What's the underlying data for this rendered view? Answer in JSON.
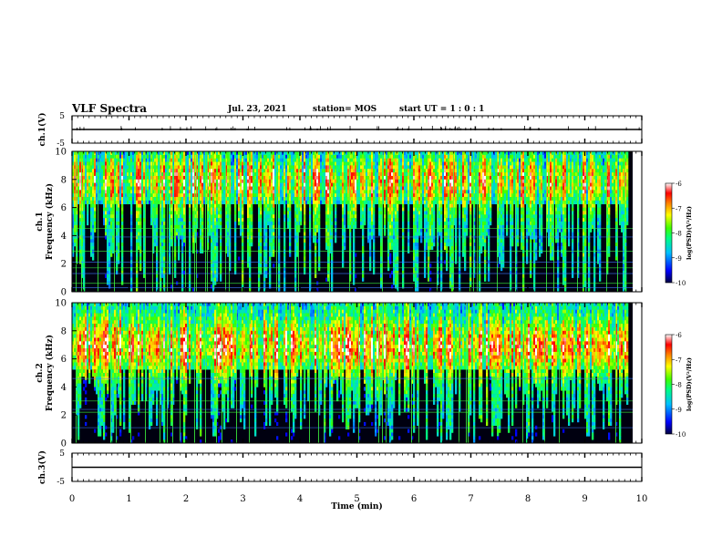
{
  "header": {
    "title": "VLF Spectra",
    "date": "Jul. 23, 2021",
    "station": "station= MOS",
    "start": "start  UT =   1 : 0  : 1"
  },
  "chart_data": [
    {
      "type": "line",
      "name": "ch1-waveform",
      "ylabel": "ch.1(V)",
      "ylim": [
        -5,
        5
      ],
      "yticks": [
        "5",
        "-5"
      ],
      "x": [
        0,
        10
      ],
      "values": [
        0,
        0
      ]
    },
    {
      "type": "heatmap",
      "name": "ch1-spectrogram",
      "ylabel": "ch.1\nFrequency (kHz)",
      "ylabel_line1": "ch.1",
      "ylabel_line2": "Frequency (kHz)",
      "ylim": [
        0,
        10
      ],
      "yticks": [
        "0",
        "2",
        "4",
        "6",
        "8",
        "10"
      ],
      "colorbar": {
        "label": "log(PSD)(V²/Hz)",
        "range": [
          -10,
          -6
        ],
        "ticks": [
          "-6",
          "-7",
          "-8",
          "-9",
          "-10"
        ]
      }
    },
    {
      "type": "heatmap",
      "name": "ch2-spectrogram",
      "ylabel": "ch.2\nFrequency (kHz)",
      "ylabel_line1": "ch.2",
      "ylabel_line2": "Frequency (kHz)",
      "ylim": [
        0,
        10
      ],
      "yticks": [
        "0",
        "2",
        "4",
        "6",
        "8",
        "10"
      ],
      "colorbar": {
        "label": "log(PSD)(V²/Hz)",
        "range": [
          -10,
          -6
        ],
        "ticks": [
          "-6",
          "-7",
          "-8",
          "-9",
          "-10"
        ]
      }
    },
    {
      "type": "line",
      "name": "ch3-waveform",
      "ylabel": "ch.3(V)",
      "ylim": [
        -5,
        5
      ],
      "yticks": [
        "5",
        "-5"
      ],
      "x": [
        0,
        10
      ],
      "values": [
        0,
        0
      ]
    }
  ],
  "xaxis": {
    "label": "Time (min)",
    "range": [
      0,
      10
    ],
    "ticks": [
      "0",
      "1",
      "2",
      "3",
      "4",
      "5",
      "6",
      "7",
      "8",
      "9",
      "10"
    ]
  },
  "colors": {
    "background": "#000000",
    "low": "#0000ff",
    "mid": "#00ff00",
    "high": "#ff0000"
  }
}
